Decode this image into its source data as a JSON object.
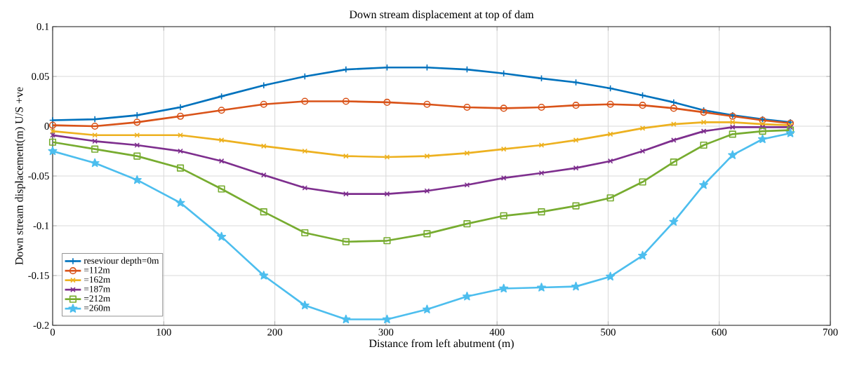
{
  "chart_data": {
    "type": "line",
    "title": "Down stream displacement at top of dam",
    "xlabel": "Distance from left abutment (m)",
    "ylabel": "Down stream displacement(m) U/S +ve",
    "x": [
      0,
      38,
      76,
      115,
      152,
      190,
      227,
      264,
      301,
      337,
      373,
      406,
      440,
      471,
      502,
      531,
      559,
      586,
      612,
      639,
      664
    ],
    "series": [
      {
        "name": "reseviour depth=0m",
        "color": "#0072bd",
        "marker": "plus",
        "values": [
          0.006,
          0.007,
          0.011,
          0.019,
          0.03,
          0.041,
          0.05,
          0.057,
          0.059,
          0.059,
          0.057,
          0.053,
          0.048,
          0.044,
          0.038,
          0.031,
          0.024,
          0.016,
          0.011,
          0.007,
          0.004
        ]
      },
      {
        "name": "=112m",
        "color": "#d95319",
        "marker": "circle",
        "values": [
          0.001,
          0.0,
          0.004,
          0.01,
          0.016,
          0.022,
          0.025,
          0.025,
          0.024,
          0.022,
          0.019,
          0.018,
          0.019,
          0.021,
          0.022,
          0.021,
          0.018,
          0.014,
          0.01,
          0.006,
          0.003
        ]
      },
      {
        "name": "=162m",
        "color": "#edb120",
        "marker": "cross",
        "values": [
          -0.005,
          -0.009,
          -0.009,
          -0.009,
          -0.014,
          -0.02,
          -0.025,
          -0.03,
          -0.031,
          -0.03,
          -0.027,
          -0.023,
          -0.019,
          -0.014,
          -0.008,
          -0.002,
          0.002,
          0.004,
          0.004,
          0.002,
          0.001
        ]
      },
      {
        "name": "=187m",
        "color": "#7e2f8e",
        "marker": "cross",
        "values": [
          -0.009,
          -0.015,
          -0.019,
          -0.025,
          -0.035,
          -0.049,
          -0.062,
          -0.068,
          -0.068,
          -0.065,
          -0.059,
          -0.052,
          -0.047,
          -0.042,
          -0.035,
          -0.025,
          -0.014,
          -0.005,
          -0.001,
          -0.001,
          -0.001
        ]
      },
      {
        "name": "=212m",
        "color": "#77ac30",
        "marker": "square",
        "values": [
          -0.016,
          -0.023,
          -0.03,
          -0.042,
          -0.063,
          -0.086,
          -0.107,
          -0.116,
          -0.115,
          -0.108,
          -0.098,
          -0.09,
          -0.086,
          -0.08,
          -0.072,
          -0.056,
          -0.036,
          -0.019,
          -0.008,
          -0.005,
          -0.004
        ]
      },
      {
        "name": "=260m",
        "color": "#4dbeee",
        "marker": "star",
        "values": [
          -0.025,
          -0.037,
          -0.054,
          -0.077,
          -0.111,
          -0.15,
          -0.18,
          -0.194,
          -0.194,
          -0.184,
          -0.171,
          -0.163,
          -0.162,
          -0.161,
          -0.151,
          -0.13,
          -0.096,
          -0.059,
          -0.029,
          -0.013,
          -0.007
        ]
      }
    ],
    "xlim": [
      0,
      700
    ],
    "ylim": [
      -0.2,
      0.1
    ],
    "xticks": [
      0,
      100,
      200,
      300,
      400,
      500,
      600,
      700
    ],
    "yticks": [
      -0.2,
      -0.15,
      -0.1,
      -0.05,
      0,
      0.05,
      0.1
    ],
    "grid": true,
    "legend": "bottom left",
    "line_style": "solid"
  }
}
